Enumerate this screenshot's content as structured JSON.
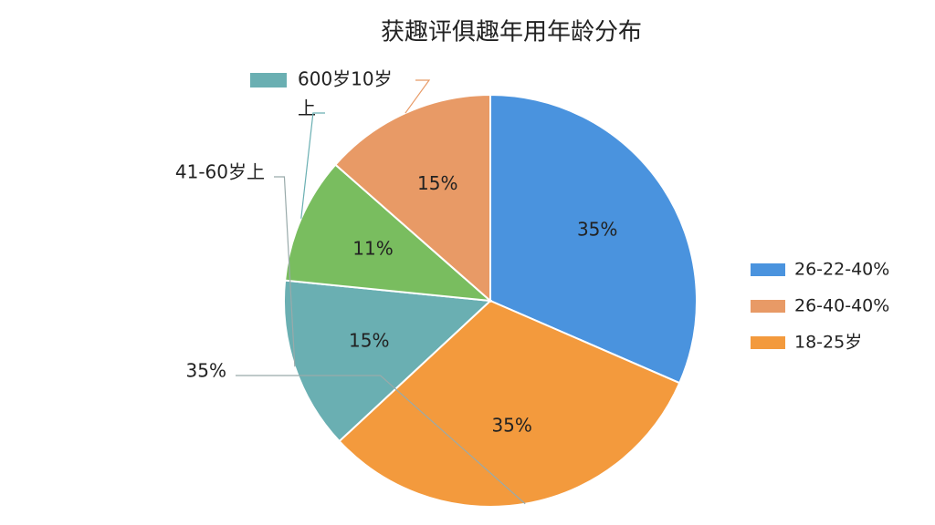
{
  "chart_data": {
    "type": "pie",
    "title": "获趣评俱趣年用年龄分布",
    "values": [
      35,
      35,
      15,
      11,
      15
    ],
    "value_labels": [
      "35%",
      "35%",
      "15%",
      "11%",
      "15%"
    ],
    "colors": [
      "#4a93de",
      "#f39a3d",
      "#6aafb2",
      "#79bd5f",
      "#e89a66"
    ],
    "legend": {
      "position": "right",
      "entries": [
        {
          "label": "26-22-40%",
          "color": "#4a93de"
        },
        {
          "label": "26-40-40%",
          "color": "#e89a66"
        },
        {
          "label": "18-25岁",
          "color": "#f39a3d"
        }
      ]
    },
    "callouts": [
      {
        "lines": [
          "600岁10岁",
          "上"
        ],
        "color": "#6aafb2"
      },
      {
        "lines": [
          "41-60岁上"
        ]
      },
      {
        "lines": [
          "35%"
        ]
      }
    ]
  }
}
